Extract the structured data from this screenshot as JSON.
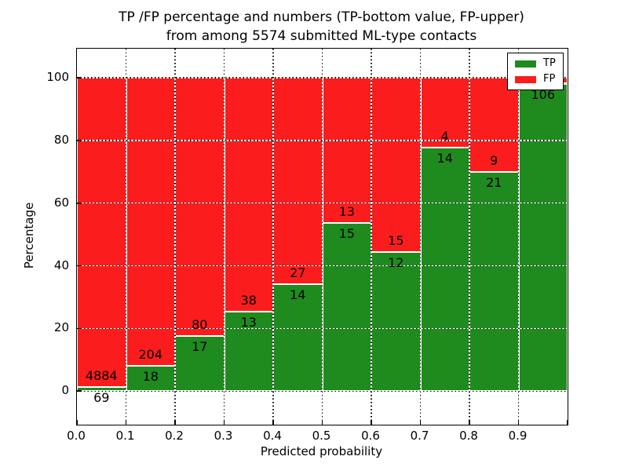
{
  "title": {
    "line1": "TP /FP percentage and numbers (TP-bottom value, FP-upper)",
    "line2": "from among 5574 submitted ML-type contacts"
  },
  "axes": {
    "xlabel": "Predicted probability",
    "ylabel": "Percentage",
    "xtick_labels": [
      "0.0",
      "0.1",
      "0.2",
      "0.3",
      "0.4",
      "0.5",
      "0.6",
      "0.7",
      "0.8",
      "0.9"
    ],
    "ytick_labels": [
      "0",
      "20",
      "40",
      "60",
      "80",
      "100"
    ]
  },
  "legend": {
    "items": [
      {
        "label": "TP",
        "color": "#1f8b1f"
      },
      {
        "label": "FP",
        "color": "#fb1d1d"
      }
    ]
  },
  "colors": {
    "tp": "#1f8b1f",
    "fp": "#fb1d1d",
    "bar_edge": "#ffffff",
    "axis": "#000000",
    "background": "#ffffff"
  },
  "chart_data": {
    "type": "bar",
    "stacked": true,
    "title": "TP /FP percentage and numbers (TP-bottom value, FP-upper) from among 5574 submitted ML-type contacts",
    "xlabel": "Predicted probability",
    "ylabel": "Percentage",
    "bins": [
      [
        0.0,
        0.1
      ],
      [
        0.1,
        0.2
      ],
      [
        0.2,
        0.3
      ],
      [
        0.3,
        0.4
      ],
      [
        0.4,
        0.5
      ],
      [
        0.5,
        0.6
      ],
      [
        0.6,
        0.7
      ],
      [
        0.7,
        0.8
      ],
      [
        0.8,
        0.9
      ],
      [
        0.9,
        1.0
      ]
    ],
    "series": [
      {
        "name": "TP",
        "counts": [
          69,
          18,
          17,
          13,
          14,
          15,
          12,
          14,
          21,
          106
        ]
      },
      {
        "name": "FP",
        "counts": [
          4884,
          204,
          80,
          38,
          27,
          13,
          15,
          4,
          9,
          null
        ]
      }
    ],
    "tp_percent": [
      1.39,
      8.11,
      17.53,
      25.49,
      34.15,
      53.57,
      44.44,
      77.78,
      70.0,
      98.15
    ],
    "xlim": [
      0,
      1.0
    ],
    "ylim": [
      -10.7,
      109.3
    ],
    "yticks": [
      0,
      20,
      40,
      60,
      80,
      100
    ],
    "grid": true,
    "grid_style": "dotted-black-white",
    "legend_position": "upper right"
  }
}
